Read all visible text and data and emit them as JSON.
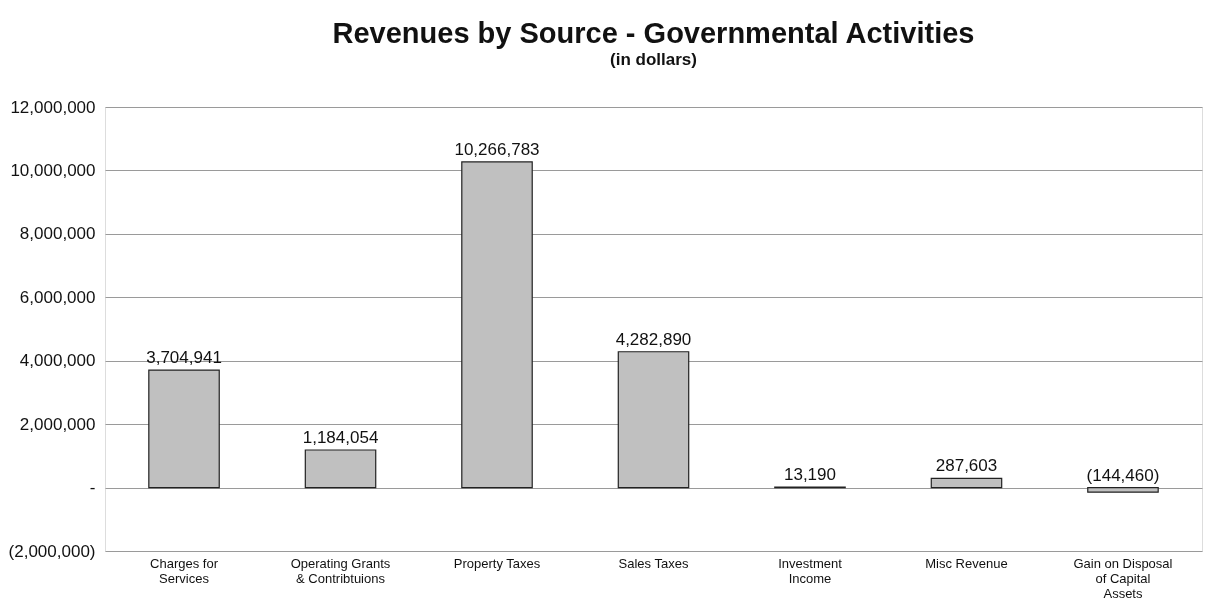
{
  "chart_data": {
    "type": "bar",
    "title": "Revenues by Source - Governmental Activities",
    "subtitle": "(in dollars)",
    "categories": [
      "Charges for Services",
      "Operating Grants & Contribtuions",
      "Property Taxes",
      "Sales Taxes",
      "Investment Income",
      "Misc Revenue",
      "Gain on Disposal of Capital Assets"
    ],
    "values": [
      3704941,
      1184054,
      10266783,
      4282890,
      13190,
      287603,
      -144460
    ],
    "color": "#c0c0c0",
    "value_labels": [
      "3,704,941",
      "1,184,054",
      "10,266,783",
      "4,282,890",
      "13,190",
      "287,603",
      "(144,460)"
    ],
    "ylim": [
      -2000000,
      12000000
    ],
    "yticks": [
      {
        "value": -2000000,
        "label": "(2,000,000)"
      },
      {
        "value": 0,
        "label": "-"
      },
      {
        "value": 2000000,
        "label": "2,000,000"
      },
      {
        "value": 4000000,
        "label": "4,000,000"
      },
      {
        "value": 6000000,
        "label": "6,000,000"
      },
      {
        "value": 8000000,
        "label": "8,000,000"
      },
      {
        "value": 10000000,
        "label": "10,000,000"
      },
      {
        "value": 12000000,
        "label": "12,000,000"
      }
    ],
    "grid": "y"
  }
}
